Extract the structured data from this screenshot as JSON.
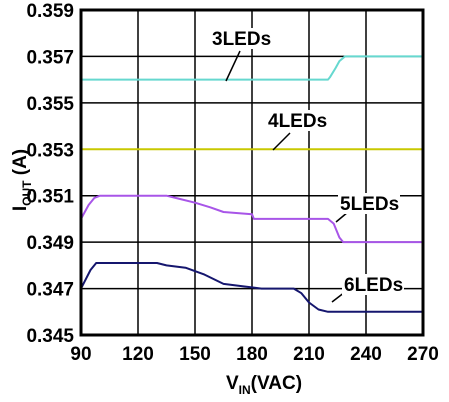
{
  "chart_data": {
    "type": "line",
    "title": "",
    "xlabel": {
      "main": "V",
      "sub": "IN",
      "unit": "(VAC)"
    },
    "ylabel": {
      "main": "I",
      "sub": "OUT",
      "unit": " (A)"
    },
    "xlim": [
      90,
      270
    ],
    "ylim": [
      0.345,
      0.359
    ],
    "x_ticks": [
      "90",
      "120",
      "150",
      "180",
      "210",
      "240",
      "270"
    ],
    "y_ticks": [
      "0.345",
      "0.347",
      "0.349",
      "0.351",
      "0.353",
      "0.355",
      "0.357",
      "0.359"
    ],
    "grid": true,
    "legend": "none",
    "series": [
      {
        "name": "3LEDs",
        "color": "#66d8cf",
        "points": [
          [
            90,
            0.356
          ],
          [
            220,
            0.356
          ],
          [
            221,
            0.3561
          ],
          [
            224,
            0.3565
          ],
          [
            226,
            0.3568
          ],
          [
            229,
            0.357
          ],
          [
            270,
            0.357
          ]
        ]
      },
      {
        "name": "4LEDs",
        "color": "#c8c800",
        "points": [
          [
            90,
            0.353
          ],
          [
            270,
            0.353
          ]
        ]
      },
      {
        "name": "5LEDs",
        "color": "#a855e8",
        "points": [
          [
            90,
            0.35
          ],
          [
            94,
            0.3506
          ],
          [
            97,
            0.3509
          ],
          [
            100,
            0.351
          ],
          [
            135,
            0.351
          ],
          [
            140,
            0.3509
          ],
          [
            150,
            0.3507
          ],
          [
            158,
            0.3505
          ],
          [
            165,
            0.3503
          ],
          [
            180,
            0.3502
          ],
          [
            181,
            0.35
          ],
          [
            220,
            0.35
          ],
          [
            223,
            0.3498
          ],
          [
            226,
            0.3492
          ],
          [
            228,
            0.349
          ],
          [
            270,
            0.349
          ]
        ]
      },
      {
        "name": "6LEDs",
        "color": "#15166e",
        "points": [
          [
            90,
            0.347
          ],
          [
            95,
            0.3478
          ],
          [
            98,
            0.3481
          ],
          [
            130,
            0.3481
          ],
          [
            135,
            0.348
          ],
          [
            145,
            0.3479
          ],
          [
            155,
            0.3476
          ],
          [
            165,
            0.3472
          ],
          [
            175,
            0.3471
          ],
          [
            185,
            0.347
          ],
          [
            202,
            0.347
          ],
          [
            206,
            0.3468
          ],
          [
            210,
            0.3464
          ],
          [
            215,
            0.3461
          ],
          [
            220,
            0.346
          ],
          [
            270,
            0.346
          ]
        ]
      }
    ]
  }
}
